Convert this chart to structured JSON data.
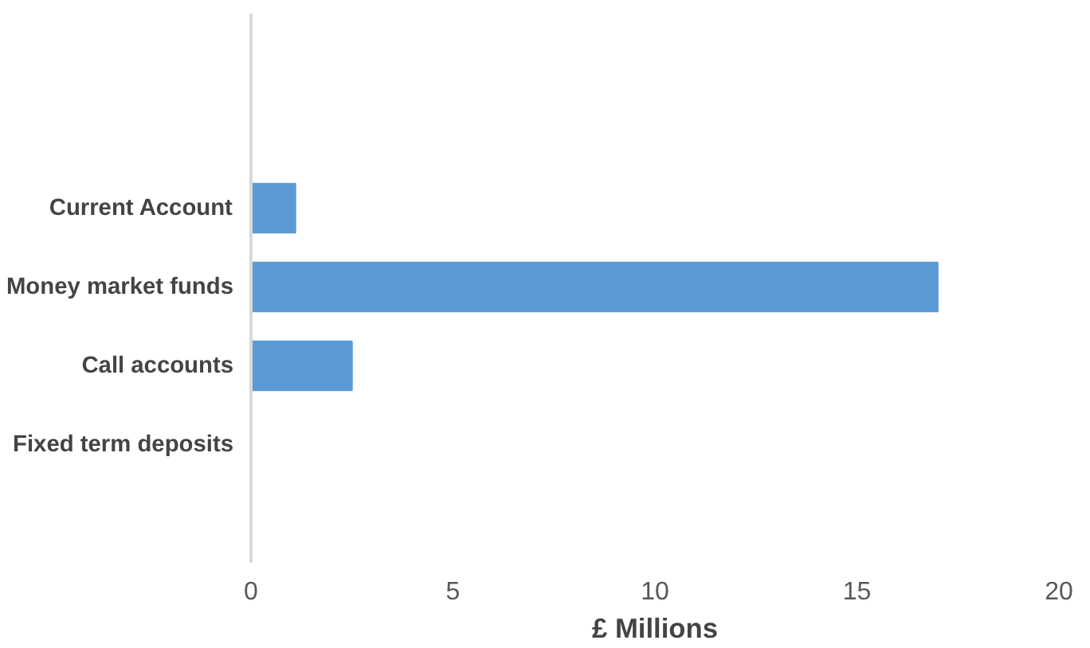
{
  "chart_data": {
    "type": "bar",
    "orientation": "horizontal",
    "xlabel": "£ Millions",
    "categories": [
      "Current Account",
      "Money market funds",
      "Call accounts",
      "Fixed term deposits"
    ],
    "values": [
      1.1,
      17,
      2.5,
      0
    ],
    "color": "#5b9bd5",
    "xlim": [
      0,
      20
    ],
    "xticks": [
      0,
      5,
      10,
      15,
      20
    ],
    "grid": false
  }
}
